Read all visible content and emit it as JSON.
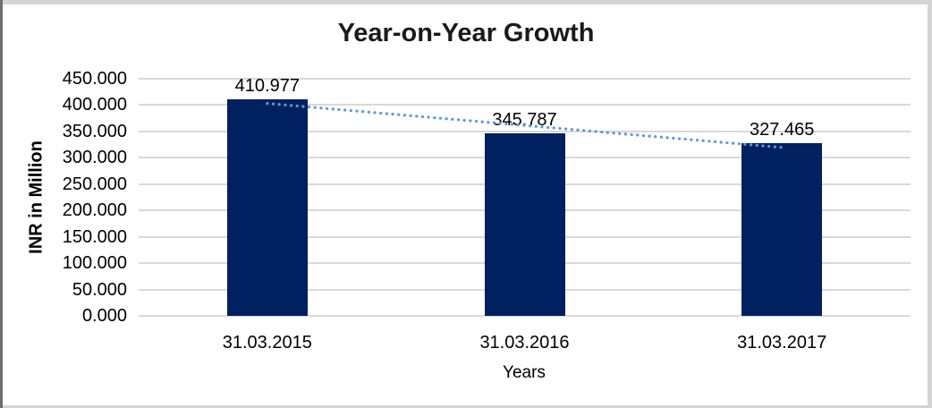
{
  "window": {
    "background": "#ffffff",
    "border_dark": "#6e6e6e",
    "border_light": "#d4d4d4"
  },
  "chart_data": {
    "type": "bar",
    "title": "Year-on-Year Growth",
    "xlabel": "Years",
    "ylabel": "INR in Million",
    "categories": [
      "31.03.2015",
      "31.03.2016",
      "31.03.2017"
    ],
    "values": [
      410.977,
      345.787,
      327.465
    ],
    "data_labels": [
      "410.977",
      "345.787",
      "327.465"
    ],
    "y_ticks": [
      "0.000",
      "50.000",
      "100.000",
      "150.000",
      "200.000",
      "250.000",
      "300.000",
      "350.000",
      "400.000",
      "450.000"
    ],
    "ylim": [
      0,
      450
    ],
    "y_tick_step": 50,
    "grid": true,
    "legend": "none",
    "bar_color": "#002060",
    "gridline_color": "#d9d9d9",
    "axis_text_color": "#000000",
    "title_color": "#1a1a1a",
    "trendline": {
      "type": "linear",
      "style": "dotted",
      "color": "#5b9bd5"
    }
  }
}
